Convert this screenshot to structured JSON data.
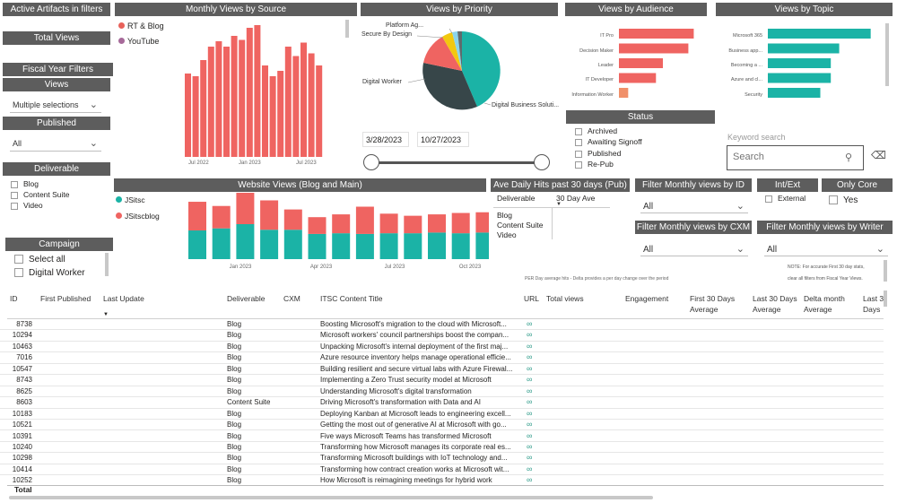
{
  "filters": {
    "active_artifacts": "Active Artifacts in filters",
    "total_views": "Total Views",
    "fiscal_year_filters": "Fiscal Year Filters",
    "views_title": "Views",
    "views_value": "Multiple selections",
    "published_title": "Published",
    "published_value": "All",
    "deliverable_title": "Deliverable",
    "deliverable_items": [
      "Blog",
      "Content Suite",
      "Video"
    ],
    "campaign_title": "Campaign",
    "campaign_items": [
      "Select all",
      "Digital Worker"
    ]
  },
  "monthly_views": {
    "title": "Monthly Views by Source",
    "legend": [
      {
        "name": "RT & Blog",
        "color": "#e8615a"
      },
      {
        "name": "YouTube",
        "color": "#a66999"
      }
    ],
    "x_ticks": [
      "Jul 2022",
      "Jan 2023",
      "Jul 2023"
    ]
  },
  "priority": {
    "title": "Views by Priority",
    "labels": [
      "Platform Ag...",
      "Secure By Design",
      "Digital Worker",
      "Digital Business Soluti..."
    ]
  },
  "audience": {
    "title": "Views by Audience",
    "labels": [
      "IT Pro",
      "Decision Maker",
      "Leader",
      "IT Developer",
      "Information Worker"
    ]
  },
  "topic": {
    "title": "Views by Topic",
    "labels": [
      "Microsoft 365",
      "Business app...",
      "Becoming a ...",
      "Azure and cl...",
      "Security"
    ]
  },
  "dates": {
    "start": "3/28/2023",
    "end": "10/27/2023"
  },
  "status": {
    "title": "Status",
    "items": [
      "Archived",
      "Awaiting Signoff",
      "Published",
      "Re-Pub"
    ]
  },
  "search": {
    "label": "Keyword search",
    "placeholder": "Search"
  },
  "website_views": {
    "title": "Website Views (Blog and Main)",
    "legend": [
      {
        "name": "JSitsc",
        "color": "#1bb3a6"
      },
      {
        "name": "JSitscblog",
        "color": "#ef6461"
      }
    ],
    "x_ticks": [
      "Jan 2023",
      "Apr 2023",
      "Jul 2023",
      "Oct 2023"
    ]
  },
  "ave_daily": {
    "title": "Ave Daily Hits past 30 days (Pub)",
    "col1": "Deliverable",
    "col2": "30 Day Ave",
    "rows": [
      "Blog",
      "Content Suite",
      "Video"
    ],
    "footnote": "PER Day average hits - Delta provides a per day change over the period"
  },
  "slicers": {
    "filter_id": {
      "title": "Filter Monthly views by ID",
      "value": "All"
    },
    "int_ext": {
      "title": "Int/Ext",
      "item": "External"
    },
    "only_core": {
      "title": "Only Core",
      "item": "Yes"
    },
    "filter_cxm": {
      "title": "Filter Monthly views by CXM",
      "value": "All"
    },
    "filter_writer": {
      "title": "Filter Monthly views by Writer",
      "value": "All"
    },
    "note1": "NOTE: For accurate First 30 day stats,",
    "note2": "clear all filters from Fiscal Year Views."
  },
  "table": {
    "headers": {
      "id": "ID",
      "first_published": "First Published",
      "last_update": "Last Update",
      "deliverable": "Deliverable",
      "cxm": "CXM",
      "title": "ITSC Content Title",
      "url": "URL",
      "total_views": "Total views",
      "engagement": "Engagement",
      "first30_a": "First 30 Days",
      "first30_b": "Average",
      "last30_a": "Last 30 Days",
      "last30_b": "Average",
      "delta_a": "Delta month",
      "delta_b": "Average",
      "last3_a": "Last 3",
      "last3_b": "Days"
    },
    "rows": [
      {
        "id": "8738",
        "deliverable": "Blog",
        "title": "Boosting Microsoft's migration to the cloud with Microsoft..."
      },
      {
        "id": "10294",
        "deliverable": "Blog",
        "title": "Microsoft workers' council partnerships boost the compan..."
      },
      {
        "id": "10463",
        "deliverable": "Blog",
        "title": "Unpacking Microsoft's internal deployment of the first maj..."
      },
      {
        "id": "7016",
        "deliverable": "Blog",
        "title": "Azure resource inventory helps manage operational efficie..."
      },
      {
        "id": "10547",
        "deliverable": "Blog",
        "title": "Building resilient and secure virtual labs with Azure Firewal..."
      },
      {
        "id": "8743",
        "deliverable": "Blog",
        "title": "Implementing a Zero Trust security model at Microsoft"
      },
      {
        "id": "8625",
        "deliverable": "Blog",
        "title": "Understanding Microsoft's digital transformation"
      },
      {
        "id": "8603",
        "deliverable": "Content Suite",
        "title": "Driving Microsoft's transformation with Data and AI"
      },
      {
        "id": "10183",
        "deliverable": "Blog",
        "title": "Deploying Kanban at Microsoft leads to engineering excell..."
      },
      {
        "id": "10521",
        "deliverable": "Blog",
        "title": "Getting the most out of generative AI at Microsoft with go..."
      },
      {
        "id": "10391",
        "deliverable": "Blog",
        "title": "Five ways Microsoft Teams has transformed Microsoft"
      },
      {
        "id": "10240",
        "deliverable": "Blog",
        "title": "Transforming how Microsoft manages its corporate real es..."
      },
      {
        "id": "10298",
        "deliverable": "Blog",
        "title": "Transforming Microsoft buildings with IoT technology and..."
      },
      {
        "id": "10414",
        "deliverable": "Blog",
        "title": "Transforming how contract creation works at Microsoft wit..."
      },
      {
        "id": "10252",
        "deliverable": "Blog",
        "title": "How Microsoft is reimagining meetings for hybrid work"
      }
    ],
    "total_label": "Total"
  },
  "colors": {
    "header_bg": "#5d5d5d",
    "teal": "#1bb3a6",
    "coral": "#ef6461",
    "dark": "#374649",
    "yellow": "#f2c80f",
    "audience_orange": "#f0906a"
  }
}
